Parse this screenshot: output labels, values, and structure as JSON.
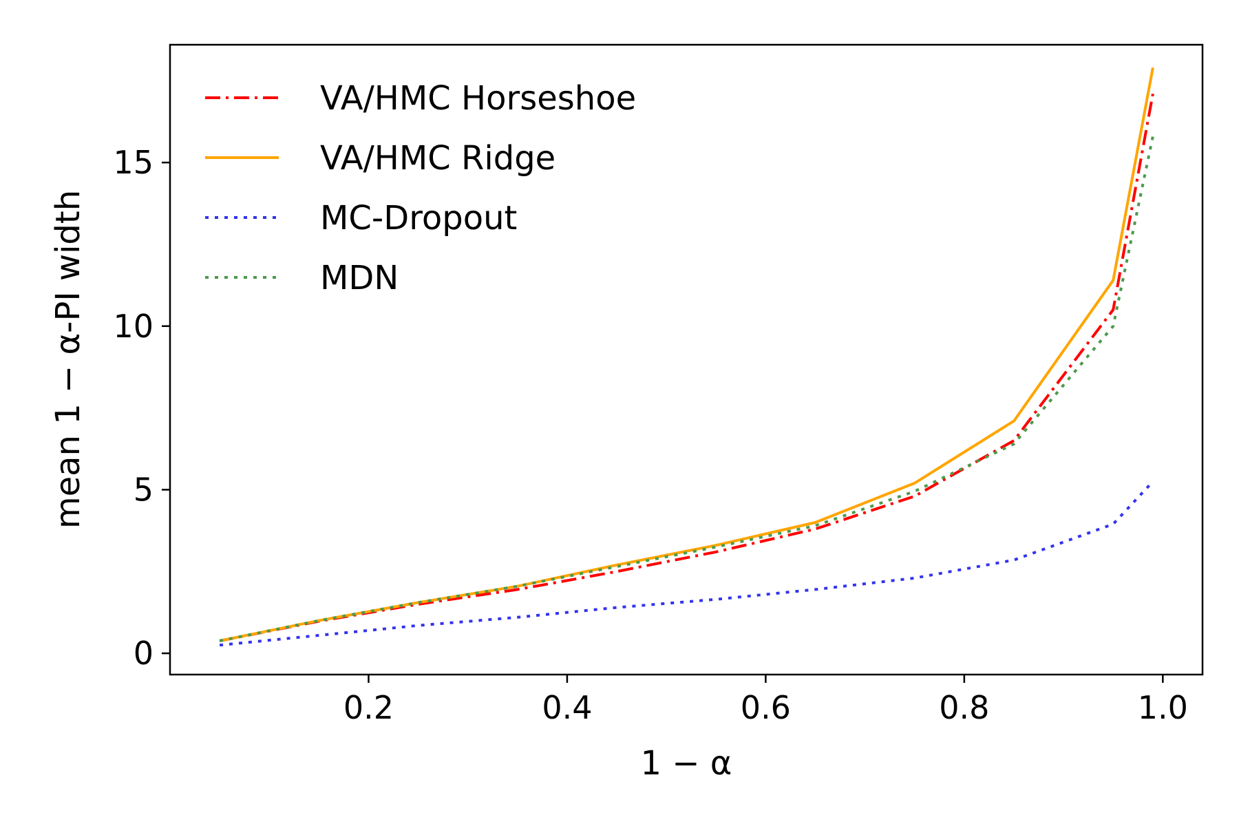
{
  "chart_data": {
    "type": "line",
    "xlabel": "1 − α",
    "ylabel": "mean 1 − α-PI width",
    "xlim": [
      0.0,
      1.04
    ],
    "ylim": [
      -0.65,
      18.6
    ],
    "xticks": [
      0.2,
      0.4,
      0.6,
      0.8,
      1.0
    ],
    "xtick_labels": [
      "0.2",
      "0.4",
      "0.6",
      "0.8",
      "1.0"
    ],
    "yticks": [
      0,
      5,
      10,
      15
    ],
    "ytick_labels": [
      "0",
      "5",
      "10",
      "15"
    ],
    "grid": false,
    "legend_position": "upper-left",
    "x": [
      0.05,
      0.15,
      0.25,
      0.35,
      0.45,
      0.55,
      0.65,
      0.75,
      0.85,
      0.95,
      0.99
    ],
    "series": [
      {
        "name": "VA/HMC Horseshoe",
        "color": "#ff0000",
        "style": "dashdot",
        "values": [
          0.38,
          0.98,
          1.5,
          1.95,
          2.5,
          3.1,
          3.8,
          4.8,
          6.5,
          10.5,
          17.1
        ]
      },
      {
        "name": "VA/HMC Ridge",
        "color": "#ffa500",
        "style": "solid",
        "values": [
          0.38,
          1.0,
          1.55,
          2.05,
          2.7,
          3.3,
          4.0,
          5.2,
          7.1,
          11.4,
          17.9
        ]
      },
      {
        "name": "MC-Dropout",
        "color": "#3333ee",
        "style": "dotted",
        "values": [
          0.25,
          0.55,
          0.85,
          1.1,
          1.4,
          1.65,
          1.95,
          2.3,
          2.85,
          3.95,
          5.25
        ]
      },
      {
        "name": "MDN",
        "color": "#4c9a4c",
        "style": "dotted",
        "values": [
          0.38,
          1.0,
          1.55,
          2.05,
          2.65,
          3.25,
          3.9,
          4.95,
          6.4,
          10.0,
          15.8
        ]
      }
    ]
  }
}
